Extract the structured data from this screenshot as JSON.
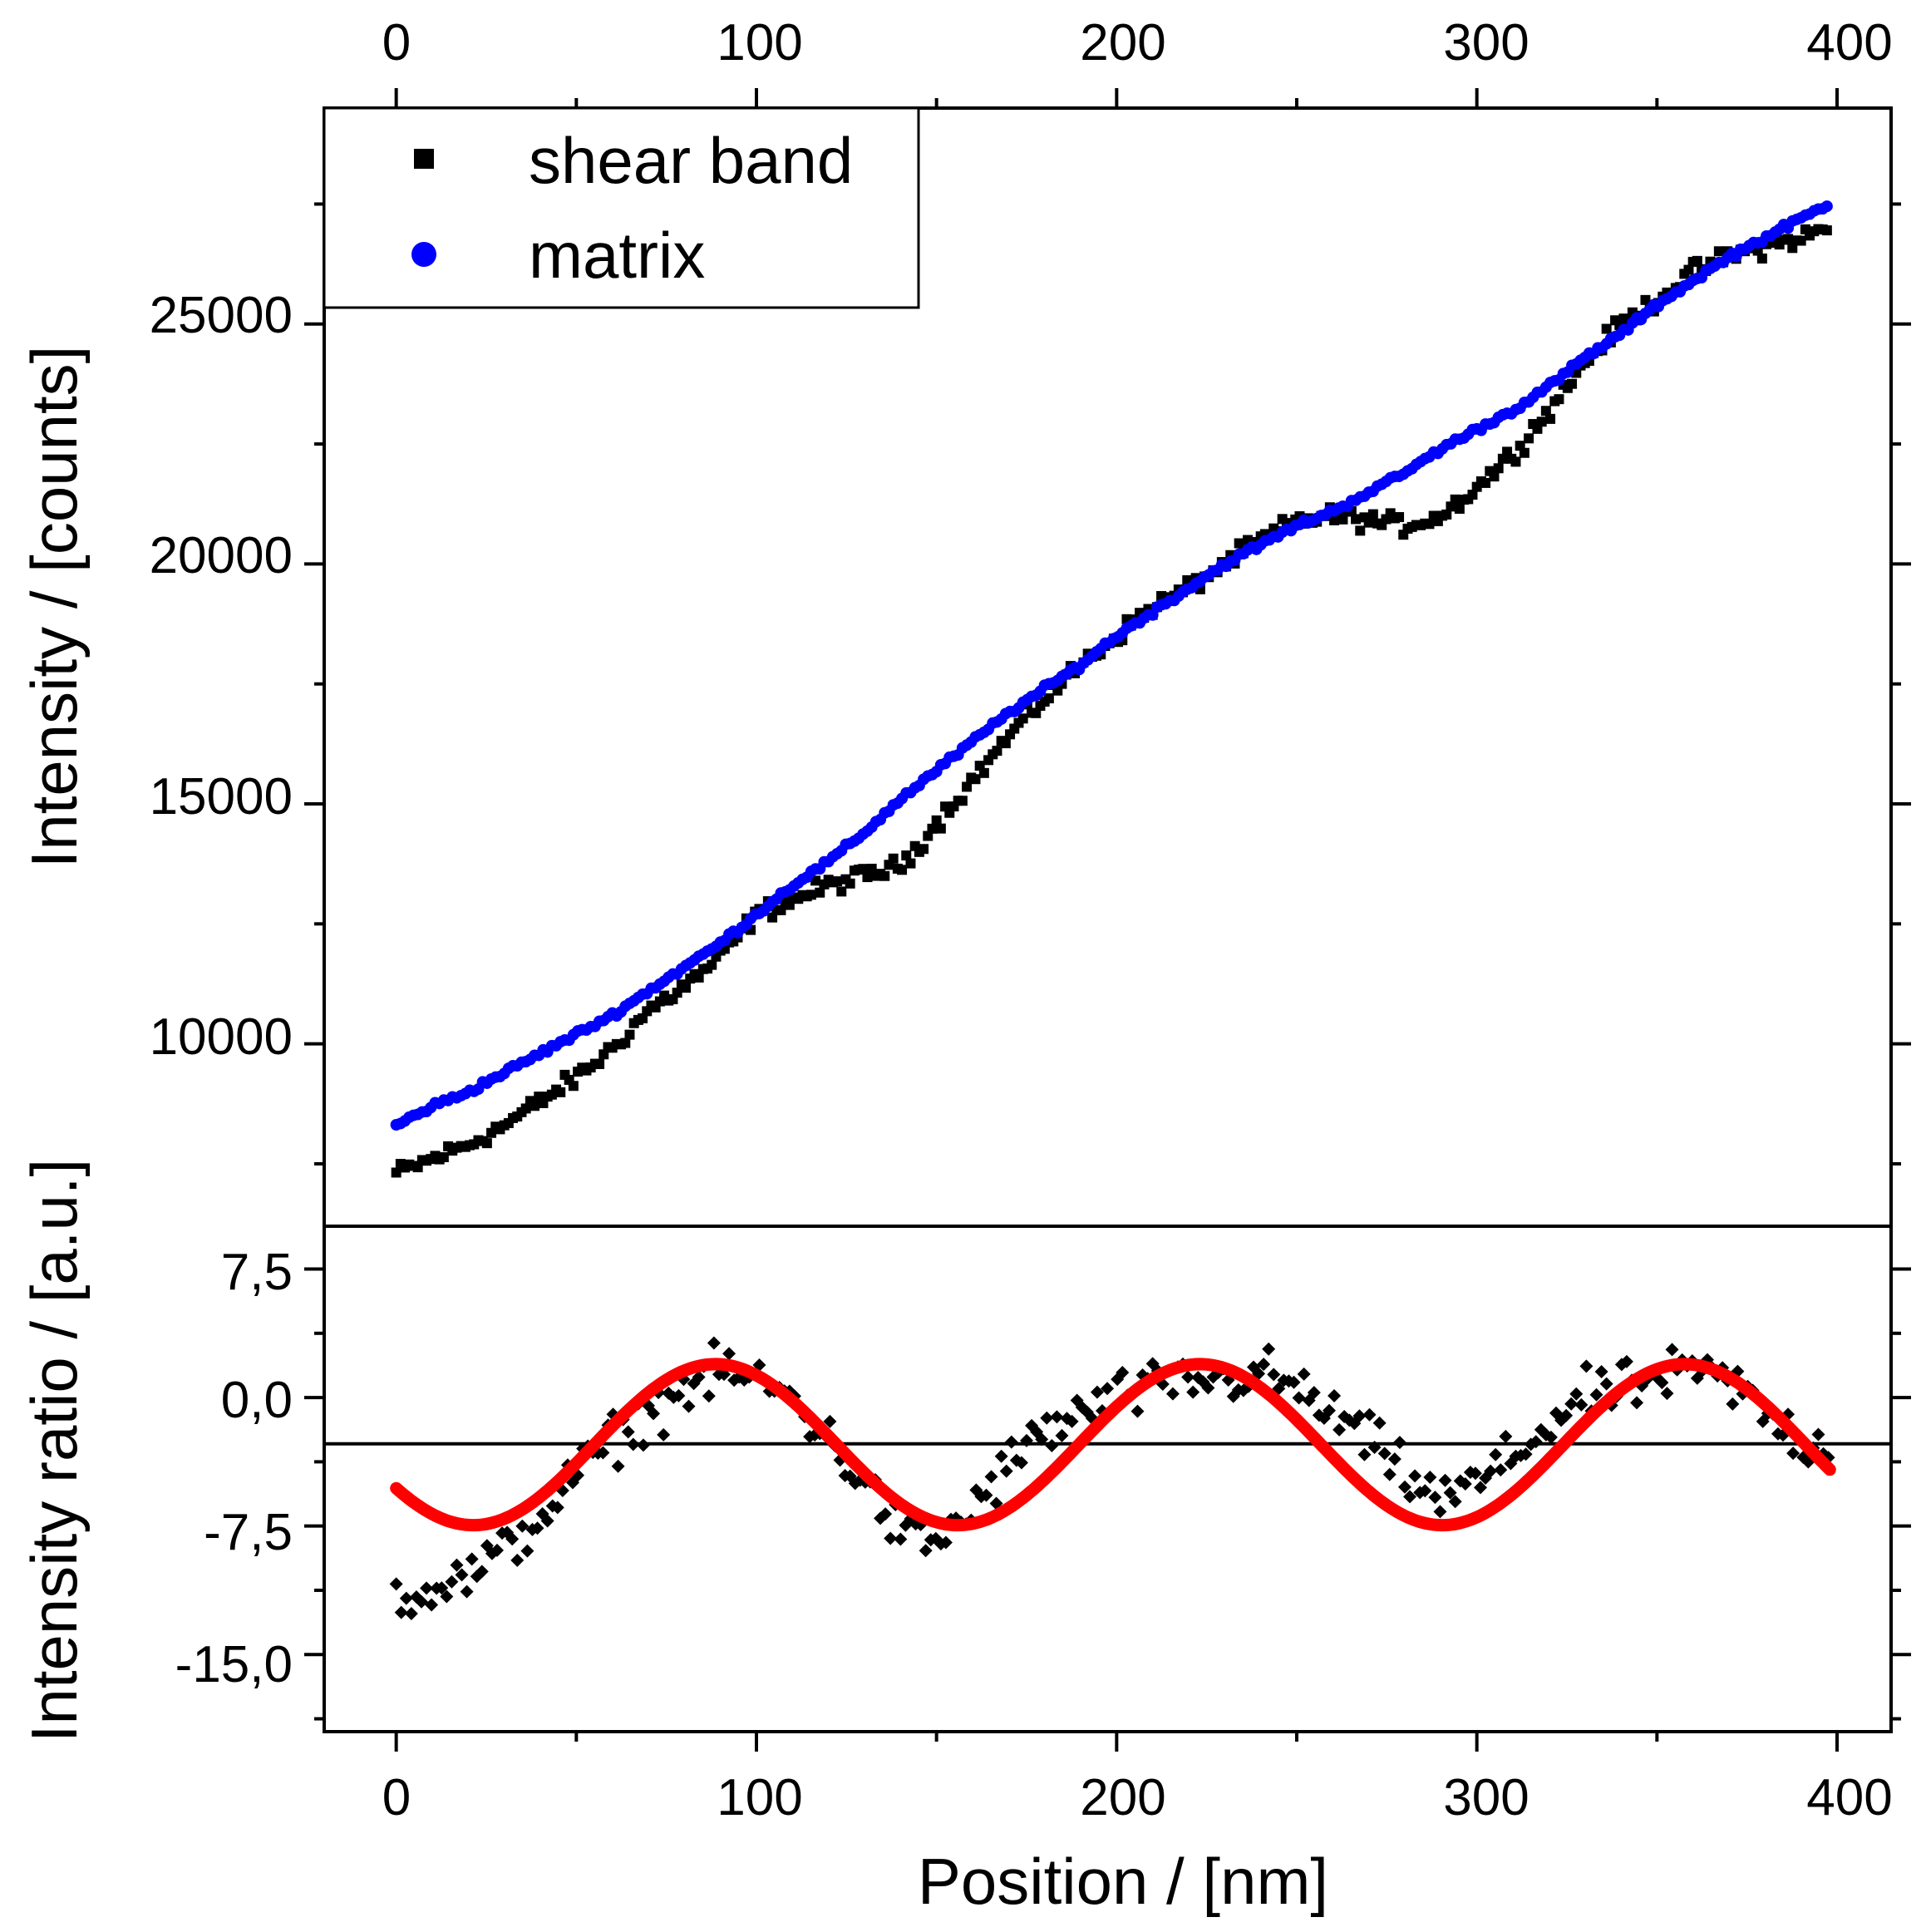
{
  "chart_data": [
    {
      "panel": "top",
      "type": "scatter",
      "ylabel": "Intensity / [counts]",
      "xlabel": "",
      "xlim": [
        -20,
        415
      ],
      "ylim": [
        6200,
        29500
      ],
      "xticks": [
        0,
        100,
        200,
        300,
        400
      ],
      "xtick_labels": [
        "0",
        "100",
        "200",
        "300",
        "400"
      ],
      "yticks": [
        10000,
        15000,
        20000,
        25000
      ],
      "ytick_labels": [
        "10000",
        "15000",
        "20000",
        "25000"
      ],
      "legend": {
        "position": "top-left",
        "entries": [
          "shear band",
          "matrix"
        ]
      },
      "series": [
        {
          "name": "shear band",
          "marker": "square",
          "color": "#000000",
          "x_range": [
            0,
            398
          ],
          "x_step": 1.2,
          "curve_points": [
            [
              0,
              7300
            ],
            [
              10,
              7600
            ],
            [
              20,
              7900
            ],
            [
              30,
              8300
            ],
            [
              40,
              8800
            ],
            [
              50,
              9300
            ],
            [
              60,
              9900
            ],
            [
              70,
              10700
            ],
            [
              80,
              11200
            ],
            [
              90,
              11800
            ],
            [
              100,
              12700
            ],
            [
              110,
              13000
            ],
            [
              120,
              13300
            ],
            [
              130,
              13500
            ],
            [
              140,
              13700
            ],
            [
              150,
              14600
            ],
            [
              160,
              15500
            ],
            [
              170,
              16400
            ],
            [
              180,
              17200
            ],
            [
              190,
              17900
            ],
            [
              200,
              18500
            ],
            [
              210,
              19100
            ],
            [
              220,
              19500
            ],
            [
              230,
              20000
            ],
            [
              240,
              20500
            ],
            [
              250,
              20900
            ],
            [
              260,
              21000
            ],
            [
              270,
              20900
            ],
            [
              280,
              20800
            ],
            [
              290,
              21000
            ],
            [
              300,
              21600
            ],
            [
              310,
              22300
            ],
            [
              320,
              23200
            ],
            [
              330,
              24200
            ],
            [
              340,
              25000
            ],
            [
              350,
              25500
            ],
            [
              360,
              26100
            ],
            [
              370,
              26400
            ],
            [
              380,
              26600
            ],
            [
              390,
              26800
            ],
            [
              398,
              27000
            ]
          ],
          "noise": 160
        },
        {
          "name": "matrix",
          "marker": "circle",
          "color": "#0000ff",
          "x_range": [
            0,
            398
          ],
          "x_step": 1.2,
          "curve_points": [
            [
              0,
              8300
            ],
            [
              10,
              8700
            ],
            [
              20,
              9000
            ],
            [
              30,
              9400
            ],
            [
              40,
              9800
            ],
            [
              50,
              10200
            ],
            [
              60,
              10600
            ],
            [
              70,
              11100
            ],
            [
              80,
              11600
            ],
            [
              90,
              12100
            ],
            [
              100,
              12700
            ],
            [
              110,
              13300
            ],
            [
              120,
              13800
            ],
            [
              130,
              14400
            ],
            [
              140,
              15100
            ],
            [
              150,
              15700
            ],
            [
              160,
              16300
            ],
            [
              170,
              16900
            ],
            [
              180,
              17400
            ],
            [
              190,
              17900
            ],
            [
              200,
              18500
            ],
            [
              210,
              19000
            ],
            [
              220,
              19500
            ],
            [
              230,
              20000
            ],
            [
              240,
              20400
            ],
            [
              250,
              20800
            ],
            [
              260,
              21100
            ],
            [
              270,
              21500
            ],
            [
              280,
              21900
            ],
            [
              290,
              22400
            ],
            [
              300,
              22800
            ],
            [
              310,
              23200
            ],
            [
              320,
              23700
            ],
            [
              330,
              24300
            ],
            [
              340,
              24800
            ],
            [
              350,
              25400
            ],
            [
              360,
              25900
            ],
            [
              370,
              26400
            ],
            [
              380,
              26800
            ],
            [
              390,
              27200
            ],
            [
              398,
              27500
            ]
          ],
          "noise": 50
        }
      ]
    },
    {
      "panel": "bottom",
      "type": "scatter",
      "ylabel": "Intensity ratio / [a.u.]",
      "xlabel": "Position / [nm]",
      "xlim": [
        -20,
        415
      ],
      "ylim": [
        -19.5,
        10
      ],
      "xticks": [
        0,
        100,
        200,
        300,
        400
      ],
      "xtick_labels": [
        "0",
        "100",
        "200",
        "300",
        "400"
      ],
      "yticks": [
        7.5,
        0,
        -7.5,
        -15
      ],
      "ytick_labels": [
        "7,5",
        "0,0",
        "-7,5",
        "-15,0"
      ],
      "reference_line": {
        "y": -2.7,
        "color": "#000000"
      },
      "series": [
        {
          "name": "intensity ratio",
          "marker": "diamond",
          "color": "#000000",
          "x_range": [
            0,
            398
          ],
          "x_step": 1.4,
          "curve_points": [
            [
              0,
              -11.5
            ],
            [
              10,
              -11
            ],
            [
              20,
              -10.5
            ],
            [
              30,
              -9
            ],
            [
              40,
              -7
            ],
            [
              50,
              -4.5
            ],
            [
              60,
              -2.5
            ],
            [
              70,
              -1
            ],
            [
              80,
              0.5
            ],
            [
              90,
              1.5
            ],
            [
              100,
              1
            ],
            [
              110,
              0
            ],
            [
              120,
              -2.5
            ],
            [
              130,
              -5
            ],
            [
              140,
              -8
            ],
            [
              150,
              -8.5
            ],
            [
              160,
              -6.5
            ],
            [
              170,
              -4
            ],
            [
              180,
              -2
            ],
            [
              190,
              -1
            ],
            [
              200,
              0
            ],
            [
              210,
              0.5
            ],
            [
              220,
              1
            ],
            [
              230,
              1
            ],
            [
              240,
              1.5
            ],
            [
              250,
              0.5
            ],
            [
              260,
              -1
            ],
            [
              270,
              -2.5
            ],
            [
              280,
              -4.5
            ],
            [
              290,
              -6
            ],
            [
              300,
              -5
            ],
            [
              310,
              -3.5
            ],
            [
              320,
              -1.5
            ],
            [
              330,
              0
            ],
            [
              340,
              0.5
            ],
            [
              350,
              1
            ],
            [
              360,
              1.5
            ],
            [
              370,
              1
            ],
            [
              380,
              -1
            ],
            [
              390,
              -2.5
            ],
            [
              398,
              -3
            ]
          ],
          "noise": 1.2
        },
        {
          "name": "sine fit",
          "type": "line",
          "color": "#ff0000",
          "x_range": [
            0,
            398
          ],
          "offset": -2.75,
          "amplitude": 4.7,
          "period": 134.5,
          "phase_x": 55
        }
      ]
    }
  ]
}
